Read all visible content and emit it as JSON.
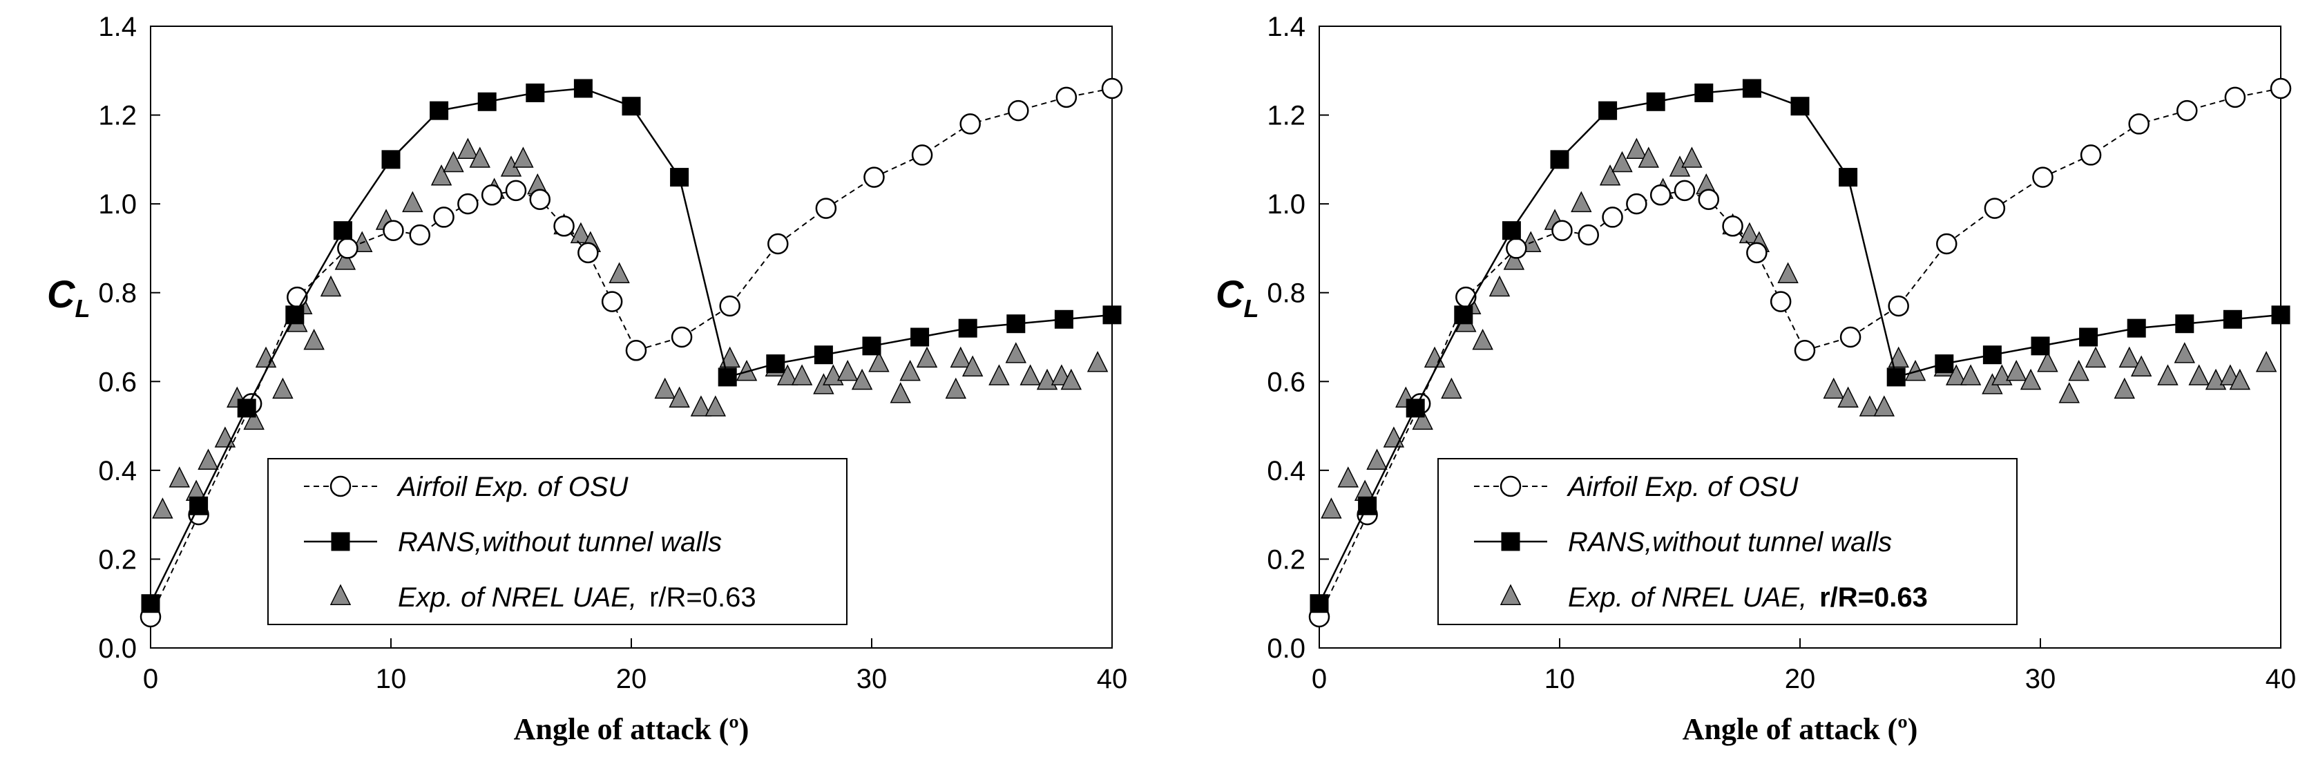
{
  "chart_data": [
    {
      "type": "scatter",
      "xlabel": "Angle of attack (º)",
      "ylabel": "C",
      "ylabel_sub": "L",
      "xlim": [
        0,
        40
      ],
      "ylim": [
        0.0,
        1.4
      ],
      "xticks": [
        "0",
        "10",
        "20",
        "30",
        "40"
      ],
      "yticks": [
        "0.0",
        "0.2",
        "0.4",
        "0.6",
        "0.8",
        "1.0",
        "1.2",
        "1.4"
      ],
      "legend_position": "bottom-left",
      "series": [
        {
          "name": "Airfoil Exp. of OSU",
          "marker": "open-circle",
          "line": "dashed",
          "x": [
            0,
            2,
            4.2,
            6.1,
            8.2,
            10.1,
            11.2,
            12.2,
            13.2,
            14.2,
            15.2,
            16.2,
            17.2,
            18.2,
            19.2,
            20.2,
            22.1,
            24.1,
            26.1,
            28.1,
            30.1,
            32.1,
            34.1,
            36.1,
            38.1,
            40
          ],
          "y": [
            0.07,
            0.3,
            0.55,
            0.79,
            0.9,
            0.94,
            0.93,
            0.97,
            1.0,
            1.02,
            1.03,
            1.01,
            0.95,
            0.89,
            0.78,
            0.67,
            0.7,
            0.77,
            0.91,
            0.99,
            1.06,
            1.11,
            1.18,
            1.21,
            1.24,
            1.26
          ]
        },
        {
          "name": "RANS,without tunnel walls",
          "marker": "filled-square",
          "line": "solid",
          "x": [
            0,
            2,
            4,
            6,
            8,
            10,
            12,
            14,
            16,
            18,
            20,
            22,
            24,
            26,
            28,
            30,
            32,
            34,
            36,
            38,
            40
          ],
          "y": [
            0.1,
            0.32,
            0.54,
            0.75,
            0.94,
            1.1,
            1.21,
            1.23,
            1.25,
            1.26,
            1.22,
            1.06,
            0.61,
            0.64,
            0.66,
            0.68,
            0.7,
            0.72,
            0.73,
            0.74,
            0.75
          ]
        },
        {
          "name": "Exp. of NREL UAE,",
          "name_suffix": "r/R=0.63",
          "marker": "filled-triangle",
          "line": "none",
          "x": [
            0.5,
            1.2,
            1.9,
            2.4,
            3.1,
            3.6,
            4.3,
            4.8,
            5.5,
            6.1,
            6.3,
            6.8,
            7.5,
            8.1,
            8.8,
            9.8,
            10.9,
            12.1,
            12.6,
            13.2,
            13.7,
            14.3,
            15.0,
            15.5,
            16.1,
            17.2,
            17.9,
            18.3,
            19.5,
            21.4,
            22.0,
            22.9,
            23.5,
            24.1,
            24.8,
            26.0,
            26.5,
            27.1,
            28.0,
            28.4,
            29.0,
            29.6,
            30.3,
            31.2,
            31.6,
            32.3,
            33.5,
            33.7,
            34.2,
            35.3,
            36.0,
            36.6,
            37.3,
            37.9,
            38.3,
            39.4
          ],
          "y": [
            0.31,
            0.38,
            0.35,
            0.42,
            0.47,
            0.56,
            0.51,
            0.65,
            0.58,
            0.73,
            0.77,
            0.69,
            0.81,
            0.87,
            0.91,
            0.96,
            1.0,
            1.06,
            1.09,
            1.12,
            1.1,
            1.03,
            1.08,
            1.1,
            1.04,
            0.95,
            0.93,
            0.91,
            0.84,
            0.58,
            0.56,
            0.54,
            0.54,
            0.65,
            0.62,
            0.63,
            0.61,
            0.61,
            0.59,
            0.61,
            0.62,
            0.6,
            0.64,
            0.57,
            0.62,
            0.65,
            0.58,
            0.65,
            0.63,
            0.61,
            0.66,
            0.61,
            0.6,
            0.61,
            0.6,
            0.64
          ]
        }
      ]
    },
    {
      "type": "scatter",
      "xlabel": "Angle of attack (º)",
      "ylabel": "C",
      "ylabel_sub": "L",
      "xlim": [
        0,
        40
      ],
      "ylim": [
        0.0,
        1.4
      ],
      "xticks": [
        "0",
        "10",
        "20",
        "30",
        "40"
      ],
      "yticks": [
        "0.0",
        "0.2",
        "0.4",
        "0.6",
        "0.8",
        "1.0",
        "1.2",
        "1.4"
      ],
      "legend_position": "bottom-left",
      "series": [
        {
          "name": "Airfoil Exp. of OSU",
          "marker": "open-circle",
          "line": "dashed",
          "x": [
            0,
            2,
            4.2,
            6.1,
            8.2,
            10.1,
            11.2,
            12.2,
            13.2,
            14.2,
            15.2,
            16.2,
            17.2,
            18.2,
            19.2,
            20.2,
            22.1,
            24.1,
            26.1,
            28.1,
            30.1,
            32.1,
            34.1,
            36.1,
            38.1,
            40
          ],
          "y": [
            0.07,
            0.3,
            0.55,
            0.79,
            0.9,
            0.94,
            0.93,
            0.97,
            1.0,
            1.02,
            1.03,
            1.01,
            0.95,
            0.89,
            0.78,
            0.67,
            0.7,
            0.77,
            0.91,
            0.99,
            1.06,
            1.11,
            1.18,
            1.21,
            1.24,
            1.26
          ]
        },
        {
          "name": "RANS,without tunnel walls",
          "marker": "filled-square",
          "line": "solid",
          "x": [
            0,
            2,
            4,
            6,
            8,
            10,
            12,
            14,
            16,
            18,
            20,
            22,
            24,
            26,
            28,
            30,
            32,
            34,
            36,
            38,
            40
          ],
          "y": [
            0.1,
            0.32,
            0.54,
            0.75,
            0.94,
            1.1,
            1.21,
            1.23,
            1.25,
            1.26,
            1.22,
            1.06,
            0.61,
            0.64,
            0.66,
            0.68,
            0.7,
            0.72,
            0.73,
            0.74,
            0.75
          ]
        },
        {
          "name": "Exp. of NREL UAE,",
          "name_suffix": "r/R=0.63",
          "marker": "filled-triangle",
          "line": "none",
          "x": [
            0.5,
            1.2,
            1.9,
            2.4,
            3.1,
            3.6,
            4.3,
            4.8,
            5.5,
            6.1,
            6.3,
            6.8,
            7.5,
            8.1,
            8.8,
            9.8,
            10.9,
            12.1,
            12.6,
            13.2,
            13.7,
            14.3,
            15.0,
            15.5,
            16.1,
            17.2,
            17.9,
            18.3,
            19.5,
            21.4,
            22.0,
            22.9,
            23.5,
            24.1,
            24.8,
            26.0,
            26.5,
            27.1,
            28.0,
            28.4,
            29.0,
            29.6,
            30.3,
            31.2,
            31.6,
            32.3,
            33.5,
            33.7,
            34.2,
            35.3,
            36.0,
            36.6,
            37.3,
            37.9,
            38.3,
            39.4
          ],
          "y": [
            0.31,
            0.38,
            0.35,
            0.42,
            0.47,
            0.56,
            0.51,
            0.65,
            0.58,
            0.73,
            0.77,
            0.69,
            0.81,
            0.87,
            0.91,
            0.96,
            1.0,
            1.06,
            1.09,
            1.12,
            1.1,
            1.03,
            1.08,
            1.1,
            1.04,
            0.95,
            0.93,
            0.91,
            0.84,
            0.58,
            0.56,
            0.54,
            0.54,
            0.65,
            0.62,
            0.63,
            0.61,
            0.61,
            0.59,
            0.61,
            0.62,
            0.6,
            0.64,
            0.57,
            0.62,
            0.65,
            0.58,
            0.65,
            0.63,
            0.61,
            0.66,
            0.61,
            0.6,
            0.61,
            0.6,
            0.64
          ]
        }
      ]
    }
  ]
}
